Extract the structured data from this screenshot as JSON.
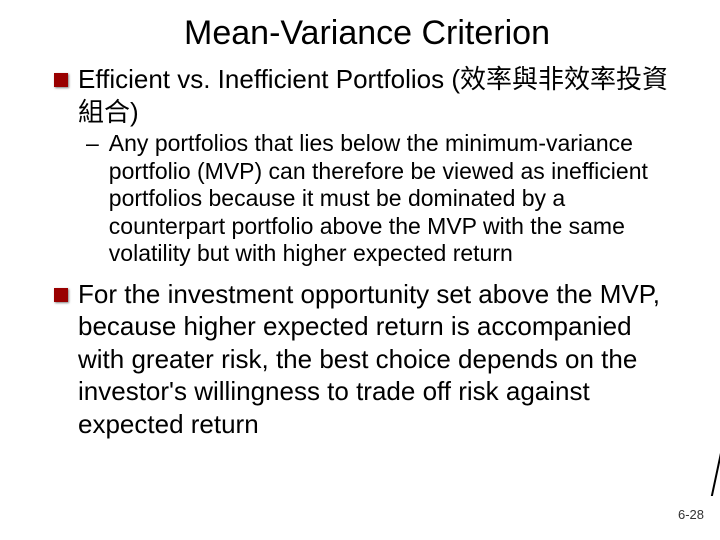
{
  "slide": {
    "title": "Mean-Variance Criterion",
    "bullets": [
      {
        "text": "Efficient vs. Inefficient Portfolios (效率與非效率投資組合)",
        "sub": "Any portfolios that lies below the minimum-variance portfolio (MVP) can therefore be viewed as inefficient portfolios because it must be dominated by a counterpart portfolio above the MVP with the same volatility but with higher expected return"
      },
      {
        "text": "For the investment opportunity set above the MVP, because higher expected return is accompanied with greater risk, the best choice depends on the investor's willingness to trade off risk against expected return",
        "sub": null
      }
    ],
    "page_number": "6-28",
    "colors": {
      "bullet_box": "#990000",
      "background": "#ffffff",
      "text": "#000000"
    }
  }
}
